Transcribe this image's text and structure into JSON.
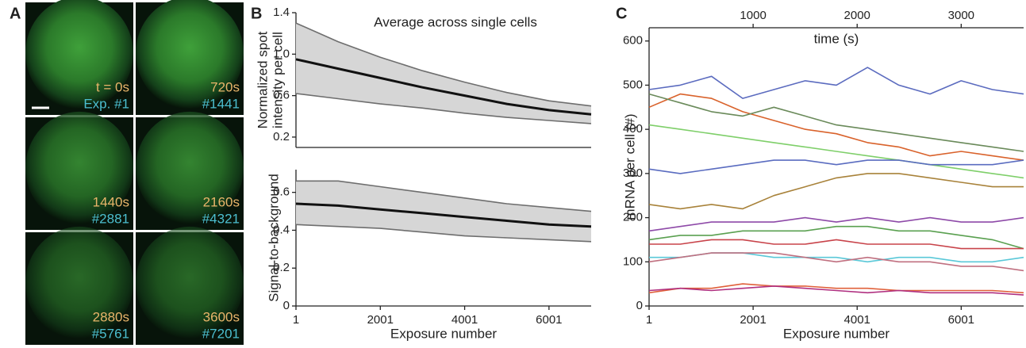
{
  "panel_labels": [
    "A",
    "B",
    "C"
  ],
  "images": [
    {
      "time": "t = 0s",
      "exposure": "Exp. #1"
    },
    {
      "time": "720s",
      "exposure": "#1441"
    },
    {
      "time": "1440s",
      "exposure": "#2881"
    },
    {
      "time": "2160s",
      "exposure": "#4321"
    },
    {
      "time": "2880s",
      "exposure": "#5761"
    },
    {
      "time": "3600s",
      "exposure": "#7201"
    }
  ],
  "chart_data": [
    {
      "type": "line",
      "title": "Average across single cells",
      "ylabel": [
        "Normalized spot",
        "intensity per cell"
      ],
      "x": [
        1,
        1001,
        2001,
        3001,
        4001,
        5001,
        6001,
        7001
      ],
      "xlim": [
        1,
        7001
      ],
      "ylim": [
        0.1,
        1.4
      ],
      "yticks": [
        0.2,
        0.6,
        {
          "value": 1,
          "label": "1.0"
        },
        1.4
      ],
      "band_color": "#d6d6d6",
      "series": [
        {
          "color": "#111111",
          "values": [
            0.95,
            0.86,
            0.77,
            0.68,
            0.6,
            0.52,
            0.46,
            0.42
          ]
        },
        {
          "color": "#6e6e6e",
          "values": [
            1.3,
            1.12,
            0.97,
            0.84,
            0.73,
            0.63,
            0.55,
            0.5
          ]
        },
        {
          "color": "#6e6e6e",
          "values": [
            0.62,
            0.57,
            0.52,
            0.48,
            0.43,
            0.39,
            0.36,
            0.33
          ]
        }
      ]
    },
    {
      "type": "line",
      "ylabel": [
        "Signal-to-background"
      ],
      "xlabel": "Exposure number",
      "x": [
        1,
        1001,
        2001,
        3001,
        4001,
        5001,
        6001,
        7001
      ],
      "xlim": [
        1,
        7001
      ],
      "ylim": [
        0,
        0.72
      ],
      "xticks": [
        1,
        2001,
        4001,
        6001
      ],
      "yticks": [
        0,
        0.2,
        0.4,
        0.6
      ],
      "band_color": "#d6d6d6",
      "series": [
        {
          "color": "#111111",
          "values": [
            0.54,
            0.53,
            0.51,
            0.49,
            0.47,
            0.45,
            0.43,
            0.42
          ]
        },
        {
          "color": "#6e6e6e",
          "values": [
            0.66,
            0.66,
            0.63,
            0.6,
            0.57,
            0.54,
            0.52,
            0.5
          ]
        },
        {
          "color": "#6e6e6e",
          "values": [
            0.43,
            0.42,
            0.41,
            0.39,
            0.37,
            0.36,
            0.35,
            0.34
          ]
        }
      ]
    },
    {
      "type": "line",
      "ylabel": [
        "mRNA per cell (#)"
      ],
      "xlabel": "Exposure number",
      "x2label": "time (s)",
      "x": [
        1,
        601,
        1201,
        1801,
        2401,
        3001,
        3601,
        4201,
        4801,
        5401,
        6001,
        6601,
        7201
      ],
      "xlim": [
        1,
        7201
      ],
      "ylim": [
        0,
        630
      ],
      "x2lim": [
        0,
        3600
      ],
      "xticks": [
        1,
        2001,
        4001,
        6001
      ],
      "x2ticks": [
        1000,
        2000,
        3000
      ],
      "yticks": [
        0,
        100,
        200,
        300,
        400,
        500,
        600
      ],
      "series": [
        {
          "color": "#5b6bbf",
          "values": [
            490,
            500,
            520,
            470,
            490,
            510,
            500,
            540,
            500,
            480,
            510,
            490,
            480
          ]
        },
        {
          "color": "#d9622b",
          "values": [
            450,
            480,
            470,
            440,
            420,
            400,
            390,
            370,
            360,
            340,
            350,
            340,
            330
          ]
        },
        {
          "color": "#6a8a5a",
          "values": [
            480,
            460,
            440,
            430,
            450,
            430,
            410,
            400,
            390,
            380,
            370,
            360,
            350
          ]
        },
        {
          "color": "#7fcf6a",
          "values": [
            410,
            400,
            390,
            380,
            370,
            360,
            350,
            340,
            330,
            320,
            310,
            300,
            290
          ]
        },
        {
          "color": "#5a6cc0",
          "values": [
            310,
            300,
            310,
            320,
            330,
            330,
            320,
            330,
            330,
            320,
            320,
            320,
            330
          ]
        },
        {
          "color": "#a8823a",
          "values": [
            230,
            220,
            230,
            220,
            250,
            270,
            290,
            300,
            300,
            290,
            280,
            270,
            270
          ]
        },
        {
          "color": "#8e4aa8",
          "values": [
            170,
            180,
            190,
            190,
            190,
            200,
            190,
            200,
            190,
            200,
            190,
            190,
            200
          ]
        },
        {
          "color": "#5aa050",
          "values": [
            150,
            160,
            160,
            170,
            170,
            170,
            180,
            180,
            170,
            170,
            160,
            150,
            130
          ]
        },
        {
          "color": "#c8434a",
          "values": [
            140,
            140,
            150,
            150,
            140,
            140,
            150,
            140,
            140,
            140,
            130,
            130,
            130
          ]
        },
        {
          "color": "#5ac8d8",
          "values": [
            110,
            110,
            120,
            120,
            110,
            110,
            110,
            100,
            110,
            110,
            100,
            100,
            110
          ]
        },
        {
          "color": "#c07080",
          "values": [
            100,
            110,
            120,
            120,
            120,
            110,
            100,
            110,
            100,
            100,
            90,
            90,
            80
          ]
        },
        {
          "color": "#e0603a",
          "values": [
            30,
            40,
            40,
            50,
            45,
            45,
            40,
            40,
            35,
            35,
            35,
            35,
            30
          ]
        },
        {
          "color": "#b03080",
          "values": [
            35,
            40,
            35,
            40,
            45,
            40,
            35,
            30,
            35,
            30,
            30,
            30,
            25
          ]
        }
      ]
    }
  ]
}
